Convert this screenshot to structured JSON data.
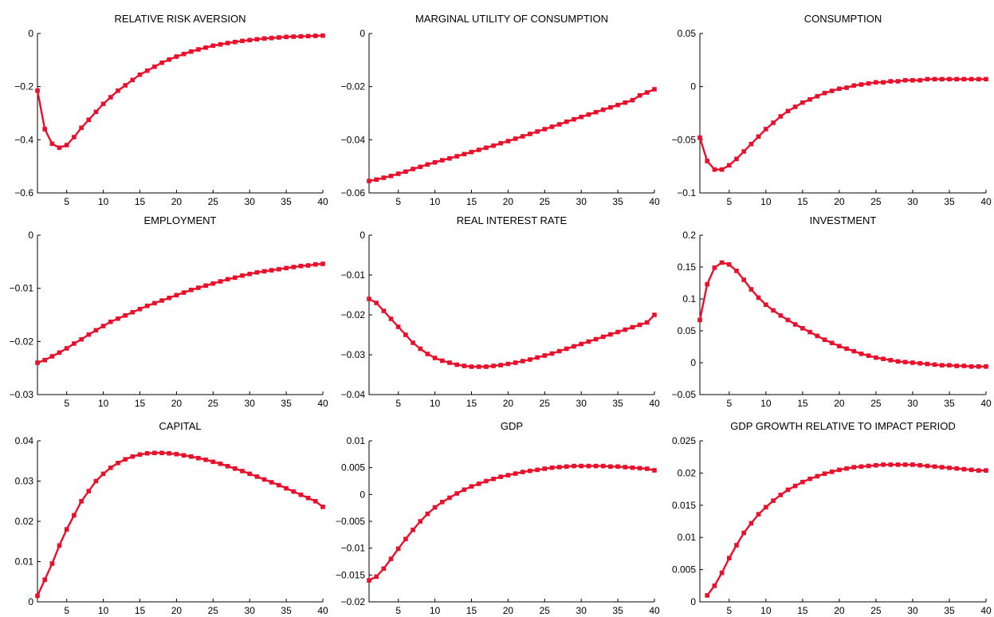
{
  "figure": {
    "series_color": "#e8102a"
  },
  "chart_data": [
    {
      "type": "line",
      "title": "RELATIVE RISK AVERSION",
      "xlim": [
        1,
        40
      ],
      "ylim": [
        -0.6,
        0
      ],
      "xticks": [
        5,
        10,
        15,
        20,
        25,
        30,
        35,
        40
      ],
      "xtick_labels": [
        "5",
        "10",
        "15",
        "20",
        "25",
        "30",
        "35",
        "40"
      ],
      "yticks": [
        -0.6,
        -0.4,
        -0.2,
        0
      ],
      "ytick_labels": [
        "−0.6",
        "−0.4",
        "−0.2",
        "0"
      ],
      "x_start": 1,
      "values": [
        -0.215,
        -0.36,
        -0.415,
        -0.43,
        -0.42,
        -0.39,
        -0.355,
        -0.325,
        -0.295,
        -0.265,
        -0.24,
        -0.215,
        -0.195,
        -0.175,
        -0.155,
        -0.14,
        -0.125,
        -0.11,
        -0.098,
        -0.087,
        -0.077,
        -0.068,
        -0.06,
        -0.053,
        -0.046,
        -0.041,
        -0.036,
        -0.032,
        -0.028,
        -0.025,
        -0.022,
        -0.019,
        -0.017,
        -0.015,
        -0.013,
        -0.012,
        -0.011,
        -0.01,
        -0.009,
        -0.008
      ]
    },
    {
      "type": "line",
      "title": "MARGINAL UTILITY OF CONSUMPTION",
      "xlim": [
        1,
        40
      ],
      "ylim": [
        -0.06,
        0
      ],
      "xticks": [
        5,
        10,
        15,
        20,
        25,
        30,
        35,
        40
      ],
      "xtick_labels": [
        "5",
        "10",
        "15",
        "20",
        "25",
        "30",
        "35",
        "40"
      ],
      "yticks": [
        -0.06,
        -0.04,
        -0.02,
        0
      ],
      "ytick_labels": [
        "−0.06",
        "−0.04",
        "−0.02",
        "0"
      ],
      "x_start": 1,
      "values": [
        -0.0555,
        -0.055,
        -0.0543,
        -0.0536,
        -0.0528,
        -0.052,
        -0.051,
        -0.0502,
        -0.0493,
        -0.0485,
        -0.0477,
        -0.047,
        -0.0462,
        -0.0454,
        -0.0446,
        -0.0438,
        -0.043,
        -0.0422,
        -0.0413,
        -0.0405,
        -0.0396,
        -0.0387,
        -0.0378,
        -0.0369,
        -0.036,
        -0.0351,
        -0.0342,
        -0.0332,
        -0.0323,
        -0.0314,
        -0.0305,
        -0.0296,
        -0.0287,
        -0.0278,
        -0.0269,
        -0.026,
        -0.0251,
        -0.0233,
        -0.0222,
        -0.021
      ]
    },
    {
      "type": "line",
      "title": "CONSUMPTION",
      "xlim": [
        1,
        40
      ],
      "ylim": [
        -0.1,
        0.05
      ],
      "xticks": [
        5,
        10,
        15,
        20,
        25,
        30,
        35,
        40
      ],
      "xtick_labels": [
        "5",
        "10",
        "15",
        "20",
        "25",
        "30",
        "35",
        "40"
      ],
      "yticks": [
        -0.1,
        -0.05,
        0,
        0.05
      ],
      "ytick_labels": [
        "−0.1",
        "−0.05",
        "0",
        "0.05"
      ],
      "x_start": 1,
      "values": [
        -0.048,
        -0.07,
        -0.078,
        -0.078,
        -0.074,
        -0.068,
        -0.061,
        -0.054,
        -0.047,
        -0.04,
        -0.034,
        -0.028,
        -0.023,
        -0.019,
        -0.015,
        -0.012,
        -0.009,
        -0.006,
        -0.004,
        -0.002,
        -0.001,
        0.001,
        0.002,
        0.003,
        0.004,
        0.004,
        0.005,
        0.005,
        0.006,
        0.006,
        0.006,
        0.007,
        0.007,
        0.007,
        0.007,
        0.007,
        0.007,
        0.007,
        0.007,
        0.007
      ]
    },
    {
      "type": "line",
      "title": "EMPLOYMENT",
      "xlim": [
        1,
        40
      ],
      "ylim": [
        -0.03,
        0
      ],
      "xticks": [
        5,
        10,
        15,
        20,
        25,
        30,
        35,
        40
      ],
      "xtick_labels": [
        "5",
        "10",
        "15",
        "20",
        "25",
        "30",
        "35",
        "40"
      ],
      "yticks": [
        -0.03,
        -0.02,
        -0.01,
        0
      ],
      "ytick_labels": [
        "−0.03",
        "−0.02",
        "−0.01",
        "0"
      ],
      "x_start": 1,
      "values": [
        -0.024,
        -0.0235,
        -0.0228,
        -0.0221,
        -0.0213,
        -0.0204,
        -0.0196,
        -0.0187,
        -0.0179,
        -0.0171,
        -0.0163,
        -0.0157,
        -0.0151,
        -0.0145,
        -0.0139,
        -0.0133,
        -0.0128,
        -0.0123,
        -0.0118,
        -0.0113,
        -0.0108,
        -0.0103,
        -0.0099,
        -0.0095,
        -0.0091,
        -0.0087,
        -0.0083,
        -0.008,
        -0.0076,
        -0.0073,
        -0.007,
        -0.0068,
        -0.0066,
        -0.0064,
        -0.0062,
        -0.006,
        -0.0058,
        -0.0057,
        -0.0055,
        -0.0054
      ]
    },
    {
      "type": "line",
      "title": "REAL INTEREST RATE",
      "xlim": [
        1,
        40
      ],
      "ylim": [
        -0.04,
        0
      ],
      "xticks": [
        5,
        10,
        15,
        20,
        25,
        30,
        35,
        40
      ],
      "xtick_labels": [
        "5",
        "10",
        "15",
        "20",
        "25",
        "30",
        "35",
        "40"
      ],
      "yticks": [
        -0.04,
        -0.03,
        -0.02,
        -0.01,
        0
      ],
      "ytick_labels": [
        "−0.04",
        "−0.03",
        "−0.02",
        "−0.01",
        "0"
      ],
      "x_start": 1,
      "values": [
        -0.016,
        -0.017,
        -0.019,
        -0.021,
        -0.023,
        -0.025,
        -0.027,
        -0.0285,
        -0.0298,
        -0.0308,
        -0.0315,
        -0.032,
        -0.0325,
        -0.0328,
        -0.033,
        -0.033,
        -0.033,
        -0.0328,
        -0.0326,
        -0.0323,
        -0.032,
        -0.0316,
        -0.0312,
        -0.0307,
        -0.0302,
        -0.0297,
        -0.0291,
        -0.0285,
        -0.0279,
        -0.0273,
        -0.0267,
        -0.0261,
        -0.0255,
        -0.0249,
        -0.0243,
        -0.0237,
        -0.0231,
        -0.0225,
        -0.0219,
        -0.02
      ]
    },
    {
      "type": "line",
      "title": "INVESTMENT",
      "xlim": [
        1,
        40
      ],
      "ylim": [
        -0.05,
        0.2
      ],
      "xticks": [
        5,
        10,
        15,
        20,
        25,
        30,
        35,
        40
      ],
      "xtick_labels": [
        "5",
        "10",
        "15",
        "20",
        "25",
        "30",
        "35",
        "40"
      ],
      "yticks": [
        -0.05,
        0,
        0.05,
        0.1,
        0.15,
        0.2
      ],
      "ytick_labels": [
        "−0.05",
        "0",
        "0.05",
        "0.1",
        "0.15",
        "0.2"
      ],
      "x_start": 1,
      "values": [
        0.067,
        0.123,
        0.149,
        0.157,
        0.154,
        0.144,
        0.13,
        0.115,
        0.102,
        0.091,
        0.082,
        0.074,
        0.067,
        0.06,
        0.054,
        0.048,
        0.042,
        0.036,
        0.031,
        0.026,
        0.022,
        0.018,
        0.014,
        0.011,
        0.008,
        0.006,
        0.004,
        0.002,
        0.001,
        0.0,
        -0.001,
        -0.002,
        -0.003,
        -0.004,
        -0.004,
        -0.005,
        -0.005,
        -0.006,
        -0.006,
        -0.006
      ]
    },
    {
      "type": "line",
      "title": "CAPITAL",
      "xlim": [
        1,
        40
      ],
      "ylim": [
        0,
        0.04
      ],
      "xticks": [
        5,
        10,
        15,
        20,
        25,
        30,
        35,
        40
      ],
      "xtick_labels": [
        "5",
        "10",
        "15",
        "20",
        "25",
        "30",
        "35",
        "40"
      ],
      "yticks": [
        0,
        0.01,
        0.02,
        0.03,
        0.04
      ],
      "ytick_labels": [
        "0",
        "0.01",
        "0.02",
        "0.03",
        "0.04"
      ],
      "x_start": 1,
      "values": [
        0.0015,
        0.0055,
        0.0095,
        0.014,
        0.018,
        0.0215,
        0.025,
        0.0275,
        0.03,
        0.0318,
        0.0333,
        0.0345,
        0.0354,
        0.0361,
        0.0366,
        0.0369,
        0.037,
        0.037,
        0.0369,
        0.0367,
        0.0364,
        0.0361,
        0.0357,
        0.0353,
        0.0348,
        0.0343,
        0.0337,
        0.0331,
        0.0325,
        0.0318,
        0.0311,
        0.0304,
        0.0297,
        0.029,
        0.0282,
        0.0274,
        0.0266,
        0.0258,
        0.025,
        0.0236
      ]
    },
    {
      "type": "line",
      "title": "GDP",
      "xlim": [
        1,
        40
      ],
      "ylim": [
        -0.02,
        0.01
      ],
      "xticks": [
        5,
        10,
        15,
        20,
        25,
        30,
        35,
        40
      ],
      "xtick_labels": [
        "5",
        "10",
        "15",
        "20",
        "25",
        "30",
        "35",
        "40"
      ],
      "yticks": [
        -0.02,
        -0.015,
        -0.01,
        -0.005,
        0,
        0.005,
        0.01
      ],
      "ytick_labels": [
        "−0.02",
        "−0.015",
        "−0.01",
        "−0.005",
        "0",
        "0.005",
        "0.01"
      ],
      "x_start": 1,
      "values": [
        -0.016,
        -0.0153,
        -0.0138,
        -0.012,
        -0.0101,
        -0.0083,
        -0.0066,
        -0.005,
        -0.0036,
        -0.0024,
        -0.0014,
        -0.0006,
        0.0002,
        0.0009,
        0.0015,
        0.002,
        0.0025,
        0.0029,
        0.0033,
        0.0036,
        0.0039,
        0.0042,
        0.0044,
        0.0046,
        0.0048,
        0.005,
        0.0051,
        0.0052,
        0.0053,
        0.0053,
        0.0053,
        0.0053,
        0.0053,
        0.0052,
        0.0052,
        0.0051,
        0.005,
        0.0049,
        0.0048,
        0.0045
      ]
    },
    {
      "type": "line",
      "title": "GDP GROWTH RELATIVE TO IMPACT PERIOD",
      "xlim": [
        1,
        40
      ],
      "ylim": [
        0,
        0.025
      ],
      "xticks": [
        5,
        10,
        15,
        20,
        25,
        30,
        35,
        40
      ],
      "xtick_labels": [
        "5",
        "10",
        "15",
        "20",
        "25",
        "30",
        "35",
        "40"
      ],
      "yticks": [
        0,
        0.005,
        0.01,
        0.015,
        0.02,
        0.025
      ],
      "ytick_labels": [
        "0",
        "0.005",
        "0.01",
        "0.015",
        "0.02",
        "0.025"
      ],
      "x_start": 2,
      "values": [
        0.001,
        0.0025,
        0.0045,
        0.0068,
        0.0088,
        0.0107,
        0.0122,
        0.0136,
        0.0147,
        0.0157,
        0.0166,
        0.0174,
        0.018,
        0.0186,
        0.0191,
        0.0195,
        0.0199,
        0.0202,
        0.0205,
        0.0207,
        0.0209,
        0.021,
        0.0211,
        0.0212,
        0.0213,
        0.0213,
        0.0213,
        0.0213,
        0.0213,
        0.0212,
        0.0211,
        0.021,
        0.0209,
        0.0208,
        0.0207,
        0.0206,
        0.0205,
        0.0204,
        0.0204
      ]
    }
  ]
}
